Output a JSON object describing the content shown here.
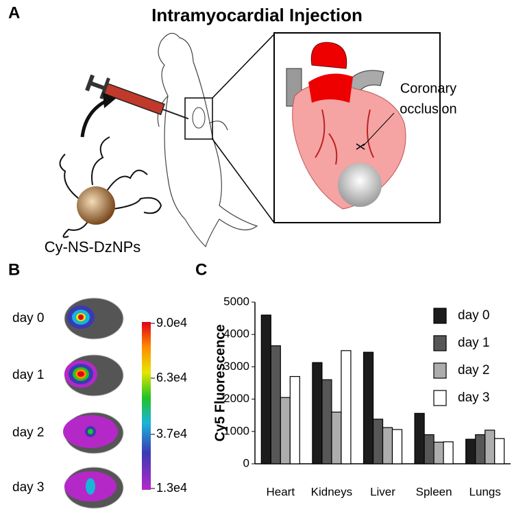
{
  "panel_a": {
    "label": "A",
    "title": "Intramyocardial Injection",
    "annotation_line1": "Coronary",
    "annotation_line2": "occlusion",
    "particle_label": "Cy-NS-DzNPs"
  },
  "panel_b": {
    "label": "B",
    "days": [
      "day 0",
      "day 1",
      "day 2",
      "day 3"
    ],
    "colorbar_labels": [
      "9.0e4",
      "6.3e4",
      "3.7e4",
      "1.3e4"
    ]
  },
  "panel_c": {
    "label": "C"
  },
  "chart_data": {
    "type": "bar",
    "ylabel": "Cy5 Fluorescence",
    "categories": [
      "Heart",
      "Kidneys",
      "Liver",
      "Spleen",
      "Lungs"
    ],
    "series": [
      {
        "name": "day 0",
        "color": "#1c1c1c",
        "values": [
          4600,
          3130,
          3450,
          1560,
          760
        ]
      },
      {
        "name": "day 1",
        "color": "#575757",
        "values": [
          3650,
          2600,
          1380,
          900,
          900
        ]
      },
      {
        "name": "day 2",
        "color": "#adadad",
        "values": [
          2050,
          1600,
          1120,
          670,
          1040
        ]
      },
      {
        "name": "day 3",
        "color": "#ffffff",
        "values": [
          2700,
          3500,
          1060,
          680,
          780
        ]
      }
    ],
    "ylim": [
      0,
      5000
    ],
    "yticks": [
      0,
      1000,
      2000,
      3000,
      4000,
      5000
    ],
    "legend": "upper-right"
  }
}
